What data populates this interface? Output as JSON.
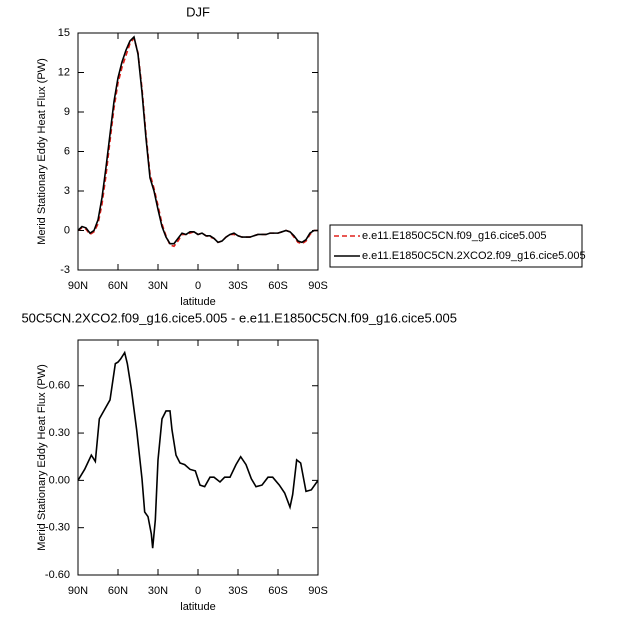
{
  "chart_data": [
    {
      "type": "line",
      "title": "DJF",
      "xlabel": "latitude",
      "ylabel": "Merid Stationary Eddy Heat Flux (PW)",
      "x": [
        90,
        87,
        84,
        81,
        78,
        75,
        72,
        69,
        66,
        63,
        60,
        57,
        54,
        51,
        48,
        45,
        42,
        39,
        36,
        33,
        30,
        27,
        24,
        21,
        18,
        15,
        12,
        9,
        6,
        3,
        0,
        -3,
        -6,
        -9,
        -12,
        -15,
        -18,
        -21,
        -24,
        -27,
        -30,
        -33,
        -36,
        -39,
        -42,
        -45,
        -48,
        -51,
        -54,
        -57,
        -60,
        -63,
        -66,
        -69,
        -72,
        -75,
        -78,
        -81,
        -84,
        -87,
        -90
      ],
      "series": [
        {
          "name": "e.e11.E1850C5CN.f09_g16.cice5.005",
          "color": "#e0201b",
          "linestyle": "dashed",
          "values": [
            0,
            0.2,
            0.1,
            -0.3,
            -0.1,
            0.5,
            2,
            4.2,
            6.8,
            9.3,
            11.2,
            12.4,
            13.3,
            14.2,
            14.6,
            13.5,
            10.8,
            7.3,
            4.3,
            3.2,
            1.9,
            0.5,
            -0.4,
            -1.1,
            -1.2,
            -0.8,
            -0.3,
            -0.3,
            -0.2,
            -0.1,
            -0.3,
            -0.2,
            -0.4,
            -0.5,
            -0.6,
            -0.9,
            -0.8,
            -0.5,
            -0.3,
            -0.3,
            -0.4,
            -0.5,
            -0.5,
            -0.5,
            -0.4,
            -0.3,
            -0.3,
            -0.3,
            -0.2,
            -0.2,
            -0.2,
            -0.1,
            0,
            -0.1,
            -0.5,
            -0.9,
            -1,
            -0.8,
            -0.3,
            0,
            0
          ]
        },
        {
          "name": "e.e11.E1850C5CN.2XCO2.f09_g16.cice5.005",
          "color": "#000000",
          "linestyle": "solid",
          "values": [
            0,
            0.3,
            0.2,
            -0.2,
            0,
            0.8,
            2.5,
            4.8,
            7.3,
            9.8,
            11.6,
            12.8,
            13.7,
            14.4,
            14.7,
            13.4,
            10.5,
            7,
            4,
            3,
            1.6,
            0.3,
            -0.5,
            -1,
            -1,
            -0.6,
            -0.2,
            -0.3,
            -0.1,
            -0.1,
            -0.3,
            -0.2,
            -0.4,
            -0.4,
            -0.6,
            -0.9,
            -0.8,
            -0.5,
            -0.3,
            -0.2,
            -0.4,
            -0.5,
            -0.5,
            -0.5,
            -0.4,
            -0.3,
            -0.3,
            -0.3,
            -0.2,
            -0.2,
            -0.2,
            -0.1,
            0,
            -0.1,
            -0.4,
            -0.8,
            -0.9,
            -0.7,
            -0.2,
            0,
            0
          ]
        }
      ],
      "xlim": [
        90,
        -90
      ],
      "xticks": [
        {
          "value": 90,
          "label": "90N"
        },
        {
          "value": 60,
          "label": "60N"
        },
        {
          "value": 30,
          "label": "30N"
        },
        0,
        {
          "value": -30,
          "label": "30S"
        },
        {
          "value": -60,
          "label": "60S"
        },
        {
          "value": -90,
          "label": "90S"
        }
      ],
      "ylim": [
        -3,
        15
      ],
      "yticks": [
        -3,
        0,
        3,
        6,
        9,
        12,
        15
      ],
      "legend": "right"
    },
    {
      "type": "line",
      "title": "50C5CN.2XCO2.f09_g16.cice5.005 - e.e11.E1850C5CN.f09_g16.cice5.005",
      "xlabel": "latitude",
      "ylabel": "Merid Stationary Eddy Heat Flux (PW)",
      "x": [
        90,
        85,
        80,
        77,
        74,
        70,
        66,
        62,
        60,
        58,
        55,
        53,
        50,
        46,
        42,
        40,
        37.5,
        35,
        34,
        32,
        30,
        27,
        24,
        21,
        19.5,
        16.5,
        13.5,
        10,
        6,
        2,
        -1.5,
        -5,
        -9,
        -12,
        -16.5,
        -20,
        -24,
        -28.5,
        -32,
        -36,
        -40,
        -43.5,
        -48,
        -52.5,
        -56,
        -61,
        -65,
        -69,
        -71,
        -74,
        -77,
        -81,
        -85,
        -90
      ],
      "series": [
        {
          "color": "#000000",
          "linestyle": "solid",
          "values": [
            0,
            0.07,
            0.16,
            0.12,
            0.39,
            0.45,
            0.51,
            0.74,
            0.75,
            0.77,
            0.81,
            0.74,
            0.58,
            0.32,
            0.01,
            -0.2,
            -0.23,
            -0.34,
            -0.43,
            -0.25,
            0.13,
            0.39,
            0.44,
            0.44,
            0.32,
            0.16,
            0.11,
            0.1,
            0.07,
            0.06,
            -0.03,
            -0.04,
            0.02,
            0.02,
            -0.01,
            0.02,
            0.02,
            0.1,
            0.15,
            0.1,
            0.01,
            -0.04,
            -0.03,
            0.02,
            0.02,
            -0.03,
            -0.08,
            -0.17,
            -0.09,
            0.13,
            0.11,
            -0.07,
            -0.06,
            0
          ]
        }
      ],
      "xlim": [
        90,
        -90
      ],
      "xticks": [
        {
          "value": 90,
          "label": "90N"
        },
        {
          "value": 60,
          "label": "60N"
        },
        {
          "value": 30,
          "label": "30N"
        },
        0,
        {
          "value": -30,
          "label": "30S"
        },
        {
          "value": -60,
          "label": "60S"
        },
        {
          "value": -90,
          "label": "90S"
        }
      ],
      "ylim": [
        -0.6,
        0.89
      ],
      "yticks": [
        {
          "value": -0.6,
          "label": "-0.60"
        },
        {
          "value": -0.3,
          "label": "-0.30"
        },
        {
          "value": 0,
          "label": "0.00"
        },
        {
          "value": 0.3,
          "label": "0.30"
        },
        {
          "value": 0.6,
          "label": "0.60"
        }
      ]
    }
  ]
}
